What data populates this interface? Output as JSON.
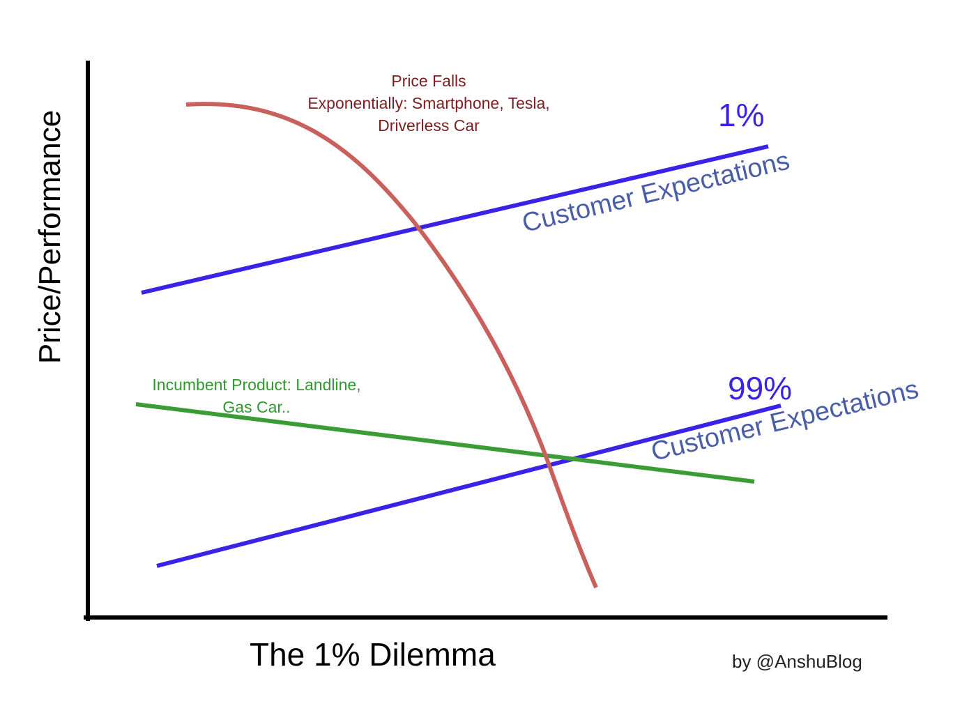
{
  "title": "The 1% Dilemma",
  "y_axis_label": "Price/Performance",
  "credit": "by @AnshuBlog",
  "price_curve": {
    "label_lines": [
      "Price Falls",
      "Exponentially: Smartphone, Tesla,",
      "Driverless Car"
    ],
    "color": "#c9605c"
  },
  "incumbent_line": {
    "label_lines": [
      "Incumbent Product: Landline,",
      "Gas Car.."
    ],
    "color": "#3a9c35"
  },
  "expectation_lines": [
    {
      "percent": "1%",
      "label": "Customer Expectations",
      "color": "#3a22e6"
    },
    {
      "percent": "99%",
      "label": "Customer Expectations",
      "color": "#3a22e6"
    }
  ],
  "axis_color": "#000000"
}
